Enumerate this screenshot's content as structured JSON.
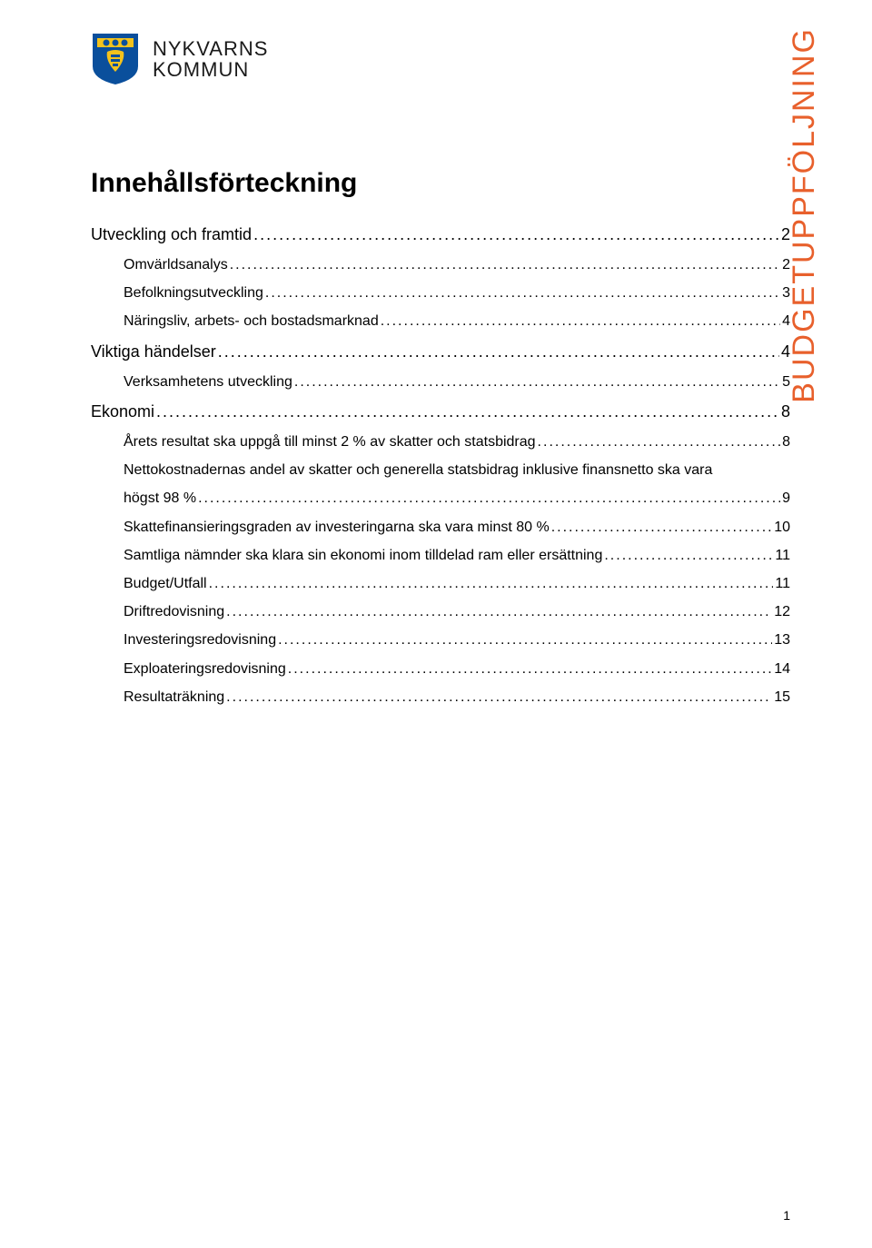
{
  "logo": {
    "text_line1": "NYKVARNS",
    "text_line2": "KOMMUN",
    "shield_colors": {
      "blue": "#0a4f9c",
      "yellow": "#f3c21c",
      "white": "#ffffff"
    }
  },
  "vertical_label": {
    "text": "BUDGETUPPFÖLJNING",
    "color": "#e8602c",
    "fontsize": 34
  },
  "toc_title": "Innehållsförteckning",
  "page_number": "1",
  "colors": {
    "text": "#000000",
    "background": "#ffffff"
  },
  "toc": [
    {
      "level": 0,
      "label": "Utveckling och framtid",
      "page": "2"
    },
    {
      "level": 1,
      "label": "Omvärldsanalys",
      "page": "2"
    },
    {
      "level": 1,
      "label": "Befolkningsutveckling",
      "page": "3"
    },
    {
      "level": 1,
      "label": "Näringsliv, arbets- och bostadsmarknad",
      "page": "4"
    },
    {
      "level": 0,
      "label": "Viktiga händelser",
      "page": "4"
    },
    {
      "level": 1,
      "label": "Verksamhetens utveckling",
      "page": "5"
    },
    {
      "level": 0,
      "label": "Ekonomi",
      "page": "8"
    },
    {
      "level": 1,
      "label": "Årets resultat ska uppgå till minst 2 % av skatter och statsbidrag",
      "page": "8"
    },
    {
      "level": 1,
      "label": "Nettokostnadernas andel av skatter och generella statsbidrag inklusive finansnetto ska vara högst 98 %",
      "page": "9",
      "wrap": true
    },
    {
      "level": 1,
      "label": "Skattefinansieringsgraden av investeringarna ska vara minst 80 %",
      "page": "10"
    },
    {
      "level": 1,
      "label": "Samtliga nämnder ska klara sin ekonomi inom tilldelad ram eller ersättning",
      "page": "11"
    },
    {
      "level": 1,
      "label": "Budget/Utfall",
      "page": "11"
    },
    {
      "level": 1,
      "label": "Driftredovisning",
      "page": "12"
    },
    {
      "level": 1,
      "label": "Investeringsredovisning",
      "page": "13"
    },
    {
      "level": 1,
      "label": "Exploateringsredovisning",
      "page": "14"
    },
    {
      "level": 1,
      "label": "Resultaträkning",
      "page": "15"
    }
  ]
}
